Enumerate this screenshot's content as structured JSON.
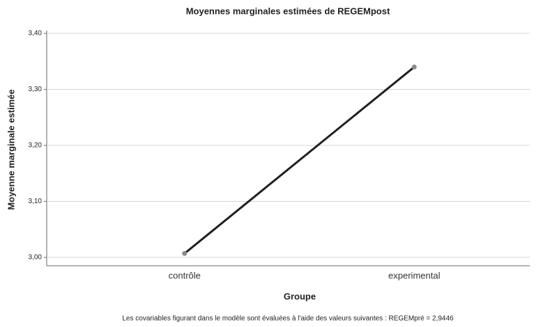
{
  "chart_data": {
    "type": "line",
    "title": "Moyennes marginales estimées de REGEMpost",
    "y_label": "Moyenne marginale estimée",
    "x_label": "Groupe",
    "note": "Les covariables figurant dans le modèle sont évaluées à l'aide des valeurs suivantes : REGEMpré = 2,9446",
    "categories": [
      "contrôle",
      "experimental"
    ],
    "values": [
      3.007,
      3.34
    ],
    "color": "#1f1f1f",
    "marker_color": "#8a8a8a",
    "ylim": [
      2.985,
      3.4
    ],
    "yticks": [
      {
        "value": 3.0,
        "label": "3,00"
      },
      {
        "value": 3.1,
        "label": "3,10"
      },
      {
        "value": 3.2,
        "label": "3,20"
      },
      {
        "value": 3.3,
        "label": "3,30"
      },
      {
        "value": 3.4,
        "label": "3,40"
      }
    ],
    "grid": true
  }
}
